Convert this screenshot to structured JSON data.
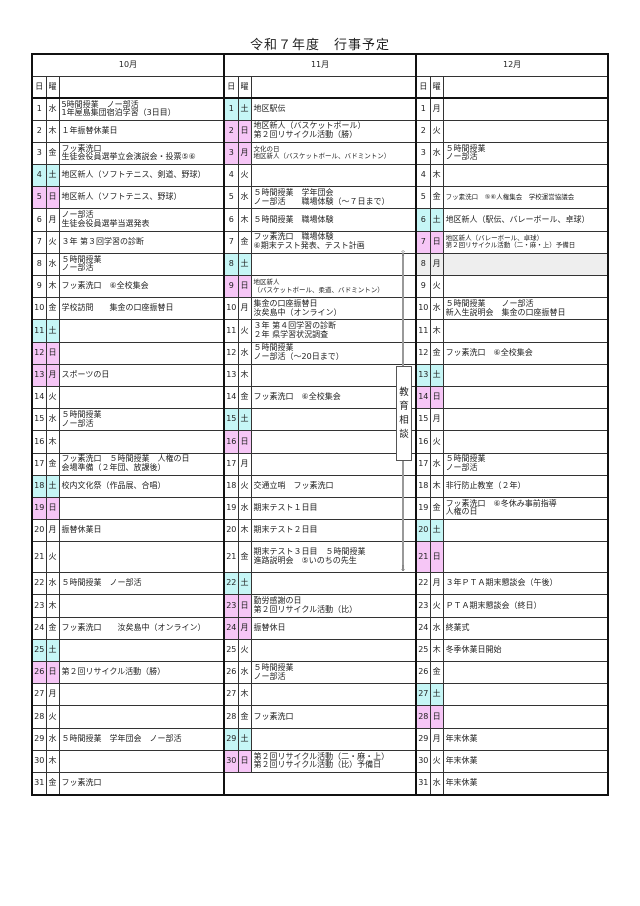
{
  "title": "令和７年度　行事予定",
  "header": {
    "day_label": "日",
    "weekday_label": "曜"
  },
  "colors": {
    "saturday": "#c6f6f6",
    "holiday": "#f6c6f6",
    "shaded": "#eeeeee"
  },
  "consultation": {
    "label": [
      "教",
      "育",
      "相",
      "談"
    ],
    "from": "11月8日",
    "to": "11月21日"
  },
  "months": [
    {
      "label": "10月",
      "days": [
        {
          "d": "1",
          "w": "水",
          "type": "",
          "events": [
            "5時間授業　ノー部活",
            "1年屋島集団宿泊学習（3日目）"
          ]
        },
        {
          "d": "2",
          "w": "木",
          "type": "",
          "events": [
            "１年振替休業日"
          ]
        },
        {
          "d": "3",
          "w": "金",
          "type": "",
          "events": [
            "フッ素洗口",
            "生徒会役員選挙立会演説会・投票⑤⑥"
          ]
        },
        {
          "d": "4",
          "w": "土",
          "type": "sat",
          "events": [
            "地区新人（ソフトテニス、剣道、野球）"
          ]
        },
        {
          "d": "5",
          "w": "日",
          "type": "hol",
          "events": [
            "地区新人（ソフトテニス、野球）"
          ]
        },
        {
          "d": "6",
          "w": "月",
          "type": "",
          "events": [
            "ノー部活",
            "生徒会役員選挙当選発表"
          ]
        },
        {
          "d": "7",
          "w": "火",
          "type": "",
          "events": [
            "３年 第３回学習の診断"
          ]
        },
        {
          "d": "8",
          "w": "水",
          "type": "",
          "events": [
            "５時間授業",
            "ノー部活"
          ]
        },
        {
          "d": "9",
          "w": "木",
          "type": "",
          "events": [
            "フッ素洗口　⑥全校集会"
          ]
        },
        {
          "d": "10",
          "w": "金",
          "type": "",
          "events": [
            "学校訪問　　集金の口座振替日"
          ]
        },
        {
          "d": "11",
          "w": "土",
          "type": "sat",
          "events": []
        },
        {
          "d": "12",
          "w": "日",
          "type": "hol",
          "events": []
        },
        {
          "d": "13",
          "w": "月",
          "type": "hol",
          "events": [
            "スポーツの日"
          ]
        },
        {
          "d": "14",
          "w": "火",
          "type": "",
          "events": []
        },
        {
          "d": "15",
          "w": "水",
          "type": "",
          "events": [
            "５時間授業",
            "ノー部活"
          ]
        },
        {
          "d": "16",
          "w": "木",
          "type": "",
          "events": []
        },
        {
          "d": "17",
          "w": "金",
          "type": "",
          "events": [
            "フッ素洗口　５時間授業　人権の日",
            "会場準備（２年団、放課後）"
          ]
        },
        {
          "d": "18",
          "w": "土",
          "type": "sat",
          "events": [
            "校内文化祭（作品展、合唱）"
          ]
        },
        {
          "d": "19",
          "w": "日",
          "type": "hol",
          "events": []
        },
        {
          "d": "20",
          "w": "月",
          "type": "",
          "events": [
            "振替休業日"
          ]
        },
        {
          "d": "21",
          "w": "火",
          "type": "",
          "events": []
        },
        {
          "d": "22",
          "w": "水",
          "type": "",
          "events": [
            "５時間授業　ノー部活"
          ]
        },
        {
          "d": "23",
          "w": "木",
          "type": "",
          "events": []
        },
        {
          "d": "24",
          "w": "金",
          "type": "",
          "events": [
            "フッ素洗口　　汝矣島中（オンライン）"
          ]
        },
        {
          "d": "25",
          "w": "土",
          "type": "sat",
          "events": []
        },
        {
          "d": "26",
          "w": "日",
          "type": "hol",
          "events": [
            "第２回リサイクル活動（勝）"
          ]
        },
        {
          "d": "27",
          "w": "月",
          "type": "",
          "events": []
        },
        {
          "d": "28",
          "w": "火",
          "type": "",
          "events": []
        },
        {
          "d": "29",
          "w": "水",
          "type": "",
          "events": [
            "５時間授業　学年団会　ノー部活"
          ]
        },
        {
          "d": "30",
          "w": "木",
          "type": "",
          "events": []
        },
        {
          "d": "31",
          "w": "金",
          "type": "",
          "events": [
            "フッ素洗口"
          ]
        }
      ]
    },
    {
      "label": "11月",
      "days": [
        {
          "d": "1",
          "w": "土",
          "type": "sat",
          "events": [
            "地区駅伝"
          ]
        },
        {
          "d": "2",
          "w": "日",
          "type": "hol",
          "events": [
            "地区新人（バスケットボール）",
            "第２回リサイクル活動（勝）"
          ]
        },
        {
          "d": "3",
          "w": "月",
          "type": "hol",
          "events": [
            "文化の日",
            "地区新人（バスケットボール、バドミントン）"
          ]
        },
        {
          "d": "4",
          "w": "火",
          "type": "",
          "events": []
        },
        {
          "d": "5",
          "w": "水",
          "type": "",
          "events": [
            "５時間授業　学年団会",
            "ノー部活　　職場体験（～７日まで）"
          ]
        },
        {
          "d": "6",
          "w": "木",
          "type": "",
          "events": [
            "５時間授業　職場体験"
          ]
        },
        {
          "d": "7",
          "w": "金",
          "type": "",
          "events": [
            "フッ素洗口　職場体験",
            "⑥期末テスト発表、テスト計画"
          ]
        },
        {
          "d": "8",
          "w": "土",
          "type": "sat",
          "events": []
        },
        {
          "d": "9",
          "w": "日",
          "type": "hol",
          "events": [
            "地区新人",
            "（バスケットボール、柔道、バドミントン）"
          ]
        },
        {
          "d": "10",
          "w": "月",
          "type": "",
          "events": [
            "集金の口座振替日",
            "汝矣島中（オンライン）"
          ]
        },
        {
          "d": "11",
          "w": "火",
          "type": "",
          "events": [
            "３年 第４回学習の診断",
            "２年 県学習状況調査"
          ]
        },
        {
          "d": "12",
          "w": "水",
          "type": "",
          "events": [
            "５時間授業",
            "ノー部活（～20日まで）"
          ]
        },
        {
          "d": "13",
          "w": "木",
          "type": "",
          "events": []
        },
        {
          "d": "14",
          "w": "金",
          "type": "",
          "events": [
            "フッ素洗口　⑥全校集会"
          ]
        },
        {
          "d": "15",
          "w": "土",
          "type": "sat",
          "events": []
        },
        {
          "d": "16",
          "w": "日",
          "type": "hol",
          "events": []
        },
        {
          "d": "17",
          "w": "月",
          "type": "",
          "events": []
        },
        {
          "d": "18",
          "w": "火",
          "type": "",
          "events": [
            "交通立哨　フッ素洗口"
          ]
        },
        {
          "d": "19",
          "w": "水",
          "type": "",
          "events": [
            "期末テスト１日目"
          ]
        },
        {
          "d": "20",
          "w": "木",
          "type": "",
          "events": [
            "期末テスト２日目"
          ]
        },
        {
          "d": "21",
          "w": "金",
          "type": "",
          "events": [
            "期末テスト３日目　５時間授業",
            "進路説明会　⑤いのちの先生"
          ]
        },
        {
          "d": "22",
          "w": "土",
          "type": "sat",
          "events": []
        },
        {
          "d": "23",
          "w": "日",
          "type": "hol",
          "events": [
            "勤労感謝の日",
            "第２回リサイクル活動（比）"
          ]
        },
        {
          "d": "24",
          "w": "月",
          "type": "hol",
          "events": [
            "振替休日"
          ]
        },
        {
          "d": "25",
          "w": "火",
          "type": "",
          "events": []
        },
        {
          "d": "26",
          "w": "水",
          "type": "",
          "events": [
            "５時間授業",
            "ノー部活"
          ]
        },
        {
          "d": "27",
          "w": "木",
          "type": "",
          "events": []
        },
        {
          "d": "28",
          "w": "金",
          "type": "",
          "events": [
            "フッ素洗口"
          ]
        },
        {
          "d": "29",
          "w": "土",
          "type": "sat",
          "events": []
        },
        {
          "d": "30",
          "w": "日",
          "type": "hol",
          "events": [
            "第２回リサイクル活動（二・麻・上）",
            "第２回リサイクル活動（比）予備日"
          ]
        }
      ]
    },
    {
      "label": "12月",
      "days": [
        {
          "d": "1",
          "w": "月",
          "type": "",
          "events": []
        },
        {
          "d": "2",
          "w": "火",
          "type": "",
          "events": []
        },
        {
          "d": "3",
          "w": "水",
          "type": "",
          "events": [
            "５時間授業",
            "ノー部活"
          ]
        },
        {
          "d": "4",
          "w": "木",
          "type": "",
          "events": []
        },
        {
          "d": "5",
          "w": "金",
          "type": "",
          "events": [
            "フッ素洗口　⑤⑥人権集会　学校運営協議会"
          ]
        },
        {
          "d": "6",
          "w": "土",
          "type": "sat",
          "events": [
            "地区新人（駅伝、バレーボール、卓球）"
          ]
        },
        {
          "d": "7",
          "w": "日",
          "type": "hol",
          "events": [
            "地区新人（バレーボール、卓球）",
            "第２回リサイクル活動（二・麻・上）予備日"
          ]
        },
        {
          "d": "8",
          "w": "月",
          "type": "shaded",
          "events": []
        },
        {
          "d": "9",
          "w": "火",
          "type": "",
          "events": []
        },
        {
          "d": "10",
          "w": "水",
          "type": "",
          "events": [
            "５時間授業　　ノー部活",
            "新入生説明会　集金の口座振替日"
          ]
        },
        {
          "d": "11",
          "w": "木",
          "type": "",
          "events": []
        },
        {
          "d": "12",
          "w": "金",
          "type": "",
          "events": [
            "フッ素洗口　⑥全校集会"
          ]
        },
        {
          "d": "13",
          "w": "土",
          "type": "sat",
          "events": []
        },
        {
          "d": "14",
          "w": "日",
          "type": "hol",
          "events": []
        },
        {
          "d": "15",
          "w": "月",
          "type": "",
          "events": []
        },
        {
          "d": "16",
          "w": "火",
          "type": "",
          "events": []
        },
        {
          "d": "17",
          "w": "水",
          "type": "",
          "events": [
            "５時間授業",
            "ノー部活"
          ]
        },
        {
          "d": "18",
          "w": "木",
          "type": "",
          "events": [
            "非行防止教室（２年）"
          ]
        },
        {
          "d": "19",
          "w": "金",
          "type": "",
          "events": [
            "フッ素洗口　⑥冬休み事前指導",
            "人権の日"
          ]
        },
        {
          "d": "20",
          "w": "土",
          "type": "sat",
          "events": []
        },
        {
          "d": "21",
          "w": "日",
          "type": "hol",
          "events": []
        },
        {
          "d": "22",
          "w": "月",
          "type": "",
          "events": [
            "３年ＰＴＡ期末懇談会（午後）"
          ]
        },
        {
          "d": "23",
          "w": "火",
          "type": "",
          "events": [
            "ＰＴＡ期末懇談会（終日）"
          ]
        },
        {
          "d": "24",
          "w": "水",
          "type": "",
          "events": [
            "終業式"
          ]
        },
        {
          "d": "25",
          "w": "木",
          "type": "",
          "events": [
            "冬季休業日開始"
          ]
        },
        {
          "d": "26",
          "w": "金",
          "type": "",
          "events": []
        },
        {
          "d": "27",
          "w": "土",
          "type": "sat",
          "events": []
        },
        {
          "d": "28",
          "w": "日",
          "type": "hol",
          "events": []
        },
        {
          "d": "29",
          "w": "月",
          "type": "",
          "events": [
            "年末休業"
          ]
        },
        {
          "d": "30",
          "w": "火",
          "type": "",
          "events": [
            "年末休業"
          ]
        },
        {
          "d": "31",
          "w": "水",
          "type": "",
          "events": [
            "年末休業"
          ]
        }
      ]
    }
  ]
}
